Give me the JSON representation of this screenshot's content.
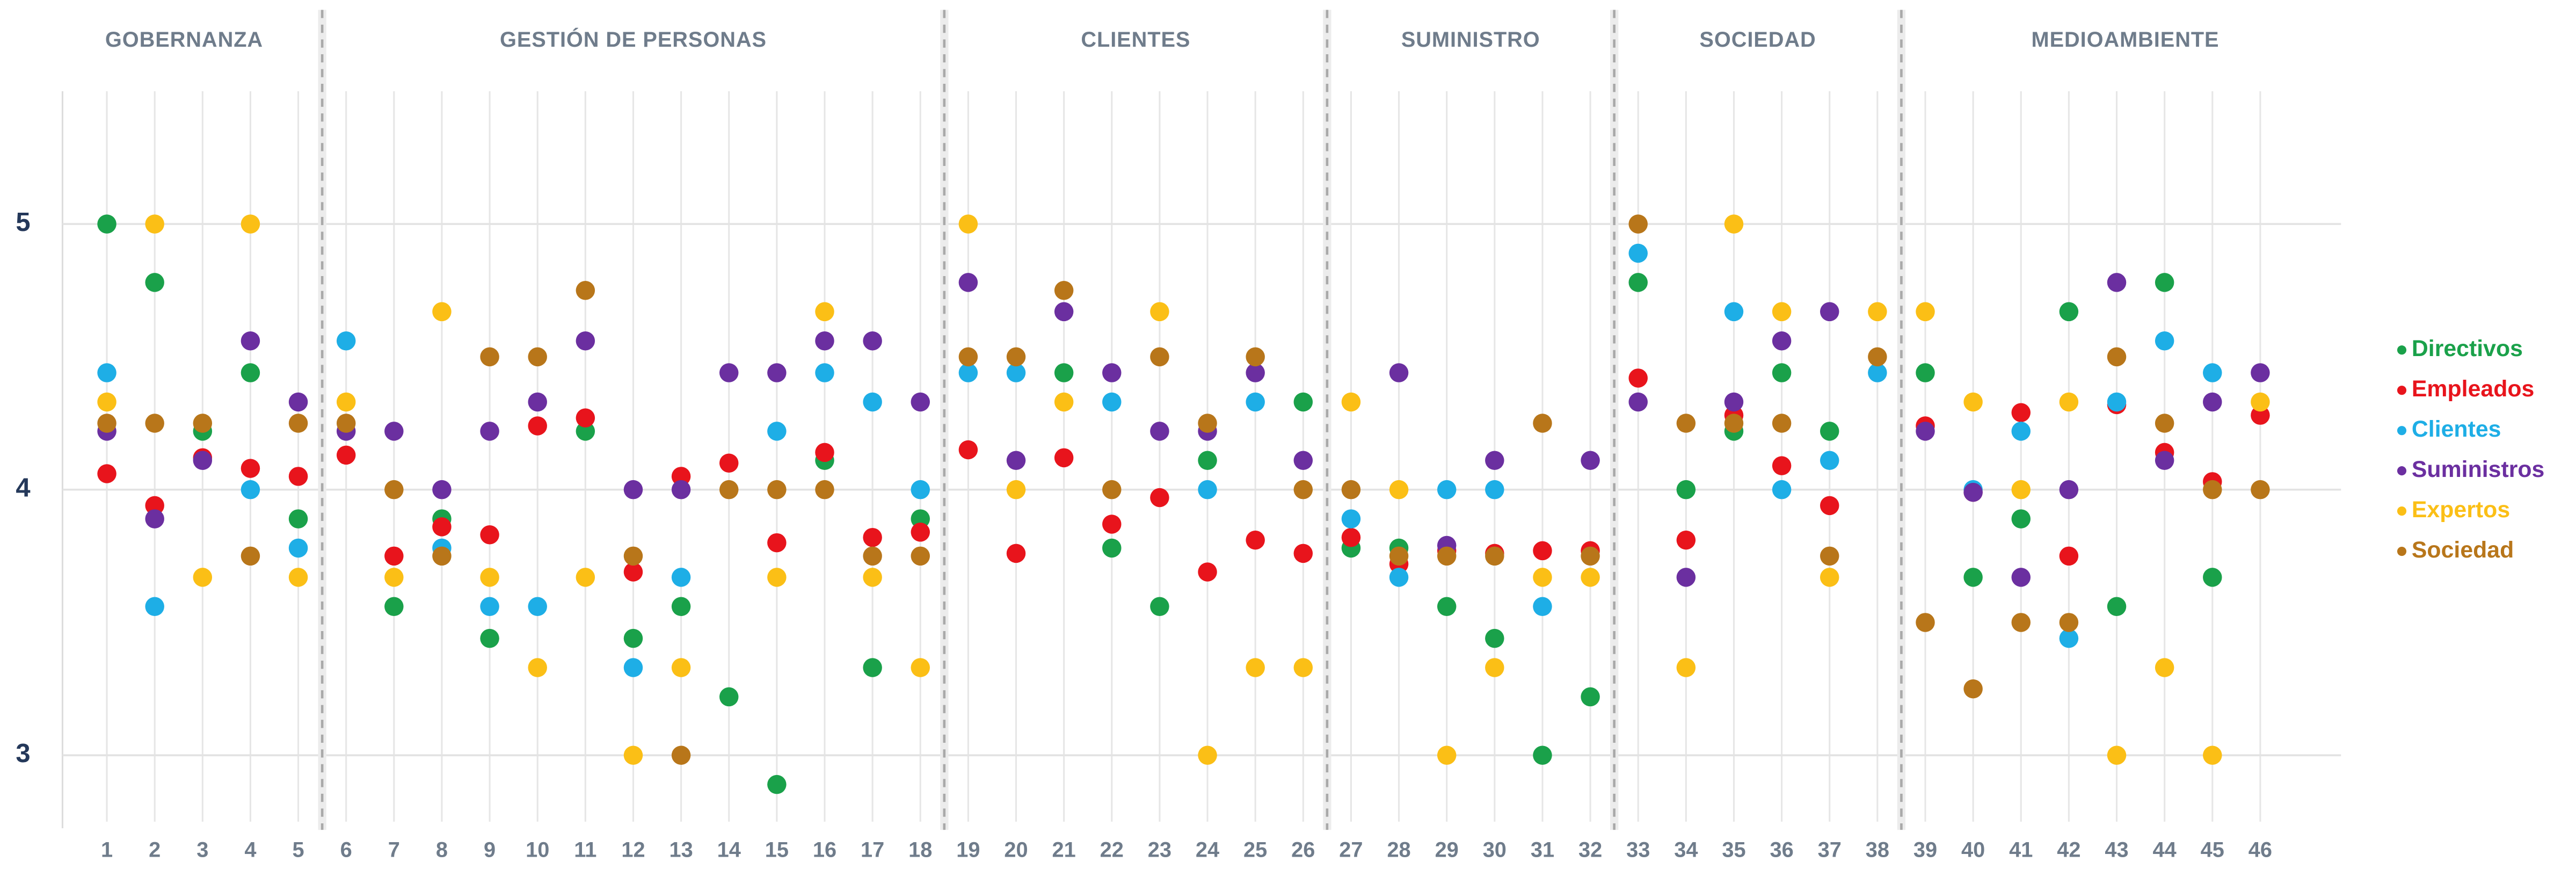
{
  "chart_data": {
    "type": "scatter",
    "groups": [
      {
        "label": "GOBERNANZA",
        "from": "1",
        "to": "5"
      },
      {
        "label": "GESTIÓN DE PERSONAS",
        "from": "6",
        "to": "18"
      },
      {
        "label": "CLIENTES",
        "from": "19",
        "to": "26"
      },
      {
        "label": "SUMINISTRO",
        "from": "27",
        "to": "32"
      },
      {
        "label": "SOCIEDAD",
        "from": "33",
        "to": "38"
      },
      {
        "label": "MEDIOAMBIENTE",
        "from": "39",
        "to": "46"
      }
    ],
    "categories": [
      "1",
      "2",
      "3",
      "4",
      "5",
      "6",
      "7",
      "8",
      "9",
      "10",
      "11",
      "12",
      "13",
      "14",
      "15",
      "16",
      "17",
      "18",
      "19",
      "20",
      "21",
      "22",
      "23",
      "24",
      "25",
      "26",
      "27",
      "28",
      "29",
      "30",
      "31",
      "32",
      "33",
      "34",
      "35",
      "36",
      "37",
      "38",
      "39",
      "40",
      "41",
      "42",
      "43",
      "44",
      "45",
      "46"
    ],
    "series": [
      {
        "name": "Directivos",
        "color": "#1aa14a",
        "values": [
          5,
          4.78,
          4.22,
          4.44,
          3.89,
          null,
          3.56,
          3.89,
          3.44,
          null,
          4.22,
          3.44,
          3.56,
          3.22,
          2.89,
          4.11,
          3.33,
          3.89,
          null,
          null,
          4.44,
          3.78,
          3.56,
          4.11,
          null,
          4.33,
          3.78,
          3.78,
          3.56,
          3.44,
          3.0,
          3.22,
          4.78,
          4.0,
          4.22,
          4.44,
          4.22,
          null,
          4.44,
          3.67,
          3.89,
          4.67,
          3.56,
          4.78,
          3.67,
          null
        ]
      },
      {
        "name": "Empleados",
        "color": "#e8141c",
        "values": [
          4.06,
          3.94,
          4.12,
          4.08,
          4.05,
          4.13,
          3.75,
          3.86,
          3.83,
          4.24,
          4.27,
          3.69,
          4.05,
          4.1,
          3.8,
          4.14,
          3.82,
          3.84,
          4.15,
          3.76,
          4.12,
          3.87,
          3.97,
          3.69,
          3.81,
          3.76,
          3.82,
          3.72,
          3.77,
          3.76,
          3.77,
          3.77,
          4.42,
          3.81,
          4.28,
          4.09,
          3.94,
          null,
          4.24,
          3.99,
          4.29,
          3.75,
          4.32,
          4.14,
          4.03,
          4.28
        ]
      },
      {
        "name": "Clientes",
        "color": "#1eaee6",
        "values": [
          4.44,
          3.56,
          null,
          4.0,
          3.78,
          4.56,
          null,
          3.78,
          3.56,
          3.56,
          null,
          3.33,
          3.67,
          null,
          4.22,
          4.44,
          4.33,
          4.0,
          4.44,
          4.44,
          null,
          4.33,
          null,
          4.0,
          4.33,
          null,
          3.89,
          3.67,
          4.0,
          4.0,
          3.56,
          null,
          4.89,
          null,
          4.67,
          4.0,
          4.11,
          4.44,
          null,
          4.0,
          4.22,
          3.44,
          4.33,
          4.56,
          4.44,
          null
        ]
      },
      {
        "name": "Suministros",
        "color": "#6b2fa0",
        "values": [
          4.22,
          3.89,
          4.11,
          4.56,
          4.33,
          4.22,
          4.22,
          4.0,
          4.22,
          4.33,
          4.56,
          4.0,
          4.0,
          4.44,
          4.44,
          4.56,
          4.56,
          4.33,
          4.78,
          4.11,
          4.67,
          4.44,
          4.22,
          4.22,
          4.44,
          4.11,
          null,
          4.44,
          3.79,
          4.11,
          null,
          4.11,
          4.33,
          3.67,
          4.33,
          4.56,
          4.67,
          null,
          4.22,
          3.99,
          3.67,
          4.0,
          4.78,
          4.11,
          4.33,
          4.44
        ]
      },
      {
        "name": "Expertos",
        "color": "#fbbf16",
        "values": [
          4.33,
          5,
          3.67,
          5,
          3.67,
          4.33,
          3.67,
          4.67,
          3.67,
          3.33,
          3.67,
          3.0,
          3.33,
          null,
          3.67,
          4.67,
          3.67,
          3.33,
          5,
          4.0,
          4.33,
          null,
          4.67,
          3.0,
          3.33,
          3.33,
          4.33,
          4.0,
          3.0,
          3.33,
          3.67,
          3.67,
          null,
          3.33,
          5,
          4.67,
          3.67,
          4.67,
          4.67,
          4.33,
          4.0,
          4.33,
          3.0,
          3.33,
          3.0,
          4.33
        ]
      },
      {
        "name": "Sociedad",
        "color": "#b8761a",
        "values": [
          4.25,
          4.25,
          4.25,
          3.75,
          4.25,
          4.25,
          4.0,
          3.75,
          4.5,
          4.5,
          4.75,
          3.75,
          3.0,
          4.0,
          4.0,
          4.0,
          3.75,
          3.75,
          4.5,
          4.5,
          4.75,
          4.0,
          4.5,
          4.25,
          4.5,
          4.0,
          4.0,
          3.75,
          3.75,
          3.75,
          4.25,
          3.75,
          5.0,
          4.25,
          4.25,
          4.25,
          3.75,
          4.5,
          3.5,
          3.25,
          3.5,
          3.5,
          4.5,
          4.25,
          4.0,
          4.0
        ]
      }
    ],
    "ylim": [
      2.75,
      5.5
    ],
    "yticks": [
      3,
      4,
      5
    ],
    "grid": true,
    "legend": "right"
  }
}
